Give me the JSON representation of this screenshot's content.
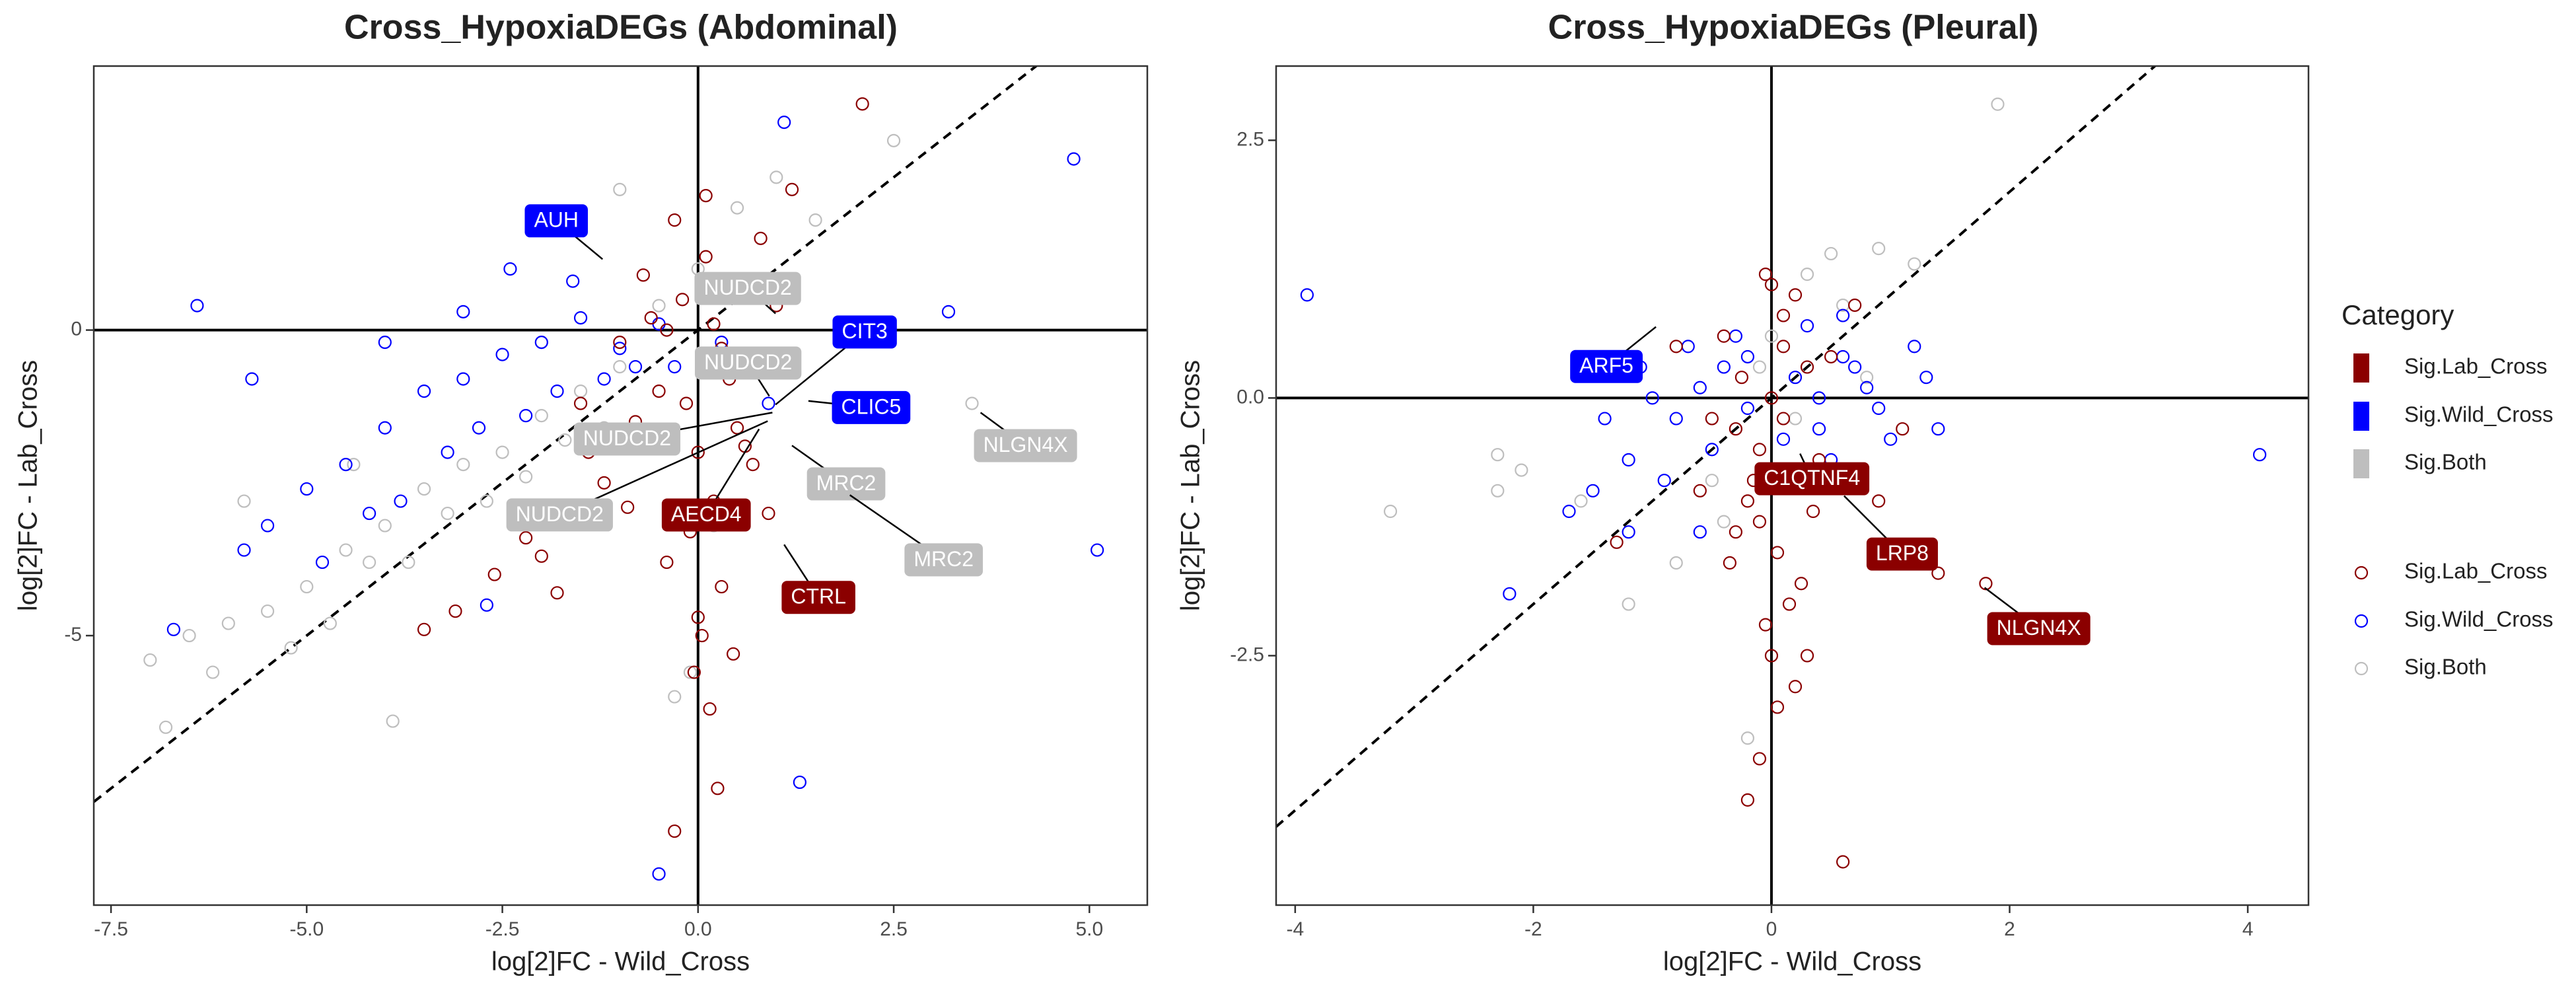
{
  "chart_data": [
    {
      "type": "scatter",
      "title": "Cross_HypoxiaDEGs (Abdominal)",
      "x_label": "log[2]FC - Wild_Cross",
      "y_label": "log[2]FC - Lab_Cross",
      "legend_title": "Category",
      "xlim": [
        -7.72,
        5.74
      ],
      "ylim": [
        -9.41,
        4.32
      ],
      "xticks": [
        -7.5,
        {
          "value": -5,
          "label": "-5.0"
        },
        -2.5,
        {
          "value": 0,
          "label": "0.0"
        },
        2.5,
        {
          "value": 5,
          "label": "5.0"
        }
      ],
      "yticks": [
        -5,
        0
      ],
      "hline": 0,
      "vline": 0,
      "abline": {
        "slope": 1,
        "intercept": 0
      },
      "series": [
        {
          "name": "Sig.Lab_Cross",
          "color": "#8b0000",
          "x": [
            -0.2,
            0.1,
            0.3,
            -0.5,
            0.6,
            -0.8,
            0.0,
            0.2,
            -0.3,
            0.4,
            -1.0,
            0.8,
            -0.1,
            0.5,
            -0.6,
            0.1,
            -1.2,
            0.3,
            -0.4,
            0.7,
            -2.2,
            -1.8,
            -2.6,
            -3.1,
            -1.5,
            -0.9,
            0.05,
            -0.05,
            0.15,
            0.0,
            0.25,
            -0.3,
            2.1,
            1.2,
            -0.4,
            0.9,
            -1.4,
            -0.7,
            0.45,
            -0.15,
            1.0,
            -2.0,
            -3.5,
            0.6,
            0.2
          ],
          "values": [
            0.5,
            1.2,
            -0.3,
            -1.0,
            0.8,
            -1.5,
            -2.0,
            -2.8,
            1.8,
            -0.8,
            -0.2,
            1.5,
            -3.3,
            -1.6,
            0.2,
            2.2,
            -2.5,
            -4.2,
            -3.8,
            -2.2,
            -3.4,
            -4.3,
            -4.0,
            -4.6,
            -1.2,
            -2.9,
            -5.0,
            -5.6,
            -6.2,
            -4.7,
            -7.5,
            -8.2,
            3.7,
            2.3,
            0.0,
            -3.0,
            -2.0,
            0.9,
            -5.3,
            -1.2,
            0.4,
            -3.7,
            -4.9,
            -1.9,
            0.1
          ]
        },
        {
          "name": "Sig.Wild_Cross",
          "color": "#0000ff",
          "x": [
            -5.5,
            -5.0,
            -4.5,
            -4.0,
            -3.5,
            -3.0,
            -2.5,
            -2.0,
            -1.5,
            -1.0,
            -0.5,
            -4.8,
            -4.2,
            -3.8,
            -3.2,
            -2.8,
            -2.2,
            -1.8,
            -1.2,
            -0.8,
            -6.4,
            -5.7,
            1.1,
            4.8,
            5.1,
            -0.5,
            1.3,
            3.2,
            -5.8,
            -3.0,
            -2.4,
            -1.6,
            -0.3,
            0.3,
            0.6,
            -4.0,
            -1.0,
            -2.7,
            -6.7,
            0.9
          ],
          "values": [
            -3.2,
            -2.6,
            -2.2,
            -1.6,
            -1.0,
            -0.8,
            -0.4,
            -0.2,
            0.2,
            -0.3,
            0.1,
            -3.8,
            -3.0,
            -2.8,
            -2.0,
            -1.6,
            -1.4,
            -1.0,
            -0.8,
            -0.6,
            0.4,
            -0.8,
            3.4,
            2.8,
            -3.6,
            -8.9,
            -7.4,
            0.3,
            -3.6,
            0.3,
            1.0,
            0.8,
            -0.6,
            -0.2,
            0.6,
            -0.2,
            -1.8,
            -4.5,
            -4.9,
            -1.2
          ]
        },
        {
          "name": "Sig.Both",
          "color": "#bebebe",
          "x": [
            -7.0,
            -6.5,
            -6.0,
            -5.5,
            -5.0,
            -4.5,
            -4.0,
            -3.5,
            -3.0,
            -2.5,
            -2.0,
            -1.5,
            -1.0,
            -0.5,
            0.0,
            0.5,
            1.0,
            1.5,
            2.5,
            -6.8,
            -6.2,
            -5.2,
            -4.7,
            -4.2,
            -3.7,
            -3.2,
            -2.7,
            -2.2,
            -1.7,
            -1.2,
            -3.9,
            -0.1,
            -0.3,
            0.2,
            -5.8,
            -2.0,
            3.5,
            0.4,
            -4.4,
            -1.0
          ],
          "values": [
            -5.4,
            -5.0,
            -4.8,
            -4.6,
            -4.2,
            -3.6,
            -3.2,
            -2.6,
            -2.2,
            -2.0,
            -1.4,
            -1.0,
            -0.6,
            0.4,
            1.0,
            2.0,
            2.5,
            1.8,
            3.1,
            -6.5,
            -5.6,
            -5.2,
            -4.8,
            -3.8,
            -3.8,
            -3.0,
            -2.8,
            -2.4,
            -1.8,
            -1.6,
            -6.4,
            -5.6,
            -6.0,
            -3.2,
            -2.8,
            -0.2,
            -1.2,
            0.6,
            -2.2,
            2.3
          ]
        }
      ],
      "annotations": [
        {
          "text": "AUH",
          "x": -1.22,
          "y": 1.16,
          "color": "#0000ff"
        },
        {
          "text": "NUDCD2",
          "x": 0.99,
          "y": 0.27,
          "color": "#bebebe"
        },
        {
          "text": "NUDCD2",
          "x": 0.91,
          "y": -1.08,
          "color": "#bebebe"
        },
        {
          "text": "CIT3",
          "x": 0.99,
          "y": -1.22,
          "color": "#0000ff"
        },
        {
          "text": "CLIC5",
          "x": 1.41,
          "y": -1.16,
          "color": "#0000ff"
        },
        {
          "text": "NUDCD2",
          "x": 0.95,
          "y": -1.35,
          "color": "#bebebe"
        },
        {
          "text": "NLGN4X",
          "x": 3.61,
          "y": -1.35,
          "color": "#bebebe"
        },
        {
          "text": "MRC2",
          "x": 1.2,
          "y": -1.89,
          "color": "#bebebe"
        },
        {
          "text": "MRC2",
          "x": 1.94,
          "y": -2.7,
          "color": "#bebebe"
        },
        {
          "text": "NUDCD2",
          "x": 0.89,
          "y": -1.49,
          "color": "#bebebe"
        },
        {
          "text": "AECD4",
          "x": 0.78,
          "y": -1.62,
          "color": "#8b0000"
        },
        {
          "text": "CTRL",
          "x": 1.1,
          "y": -3.51,
          "color": "#8b0000"
        }
      ]
    },
    {
      "type": "scatter",
      "title": "Cross_HypoxiaDEGs (Pleural)",
      "x_label": "log[2]FC - Wild_Cross",
      "y_label": "log[2]FC - Lab_Cross",
      "xlim": [
        -4.16,
        4.51
      ],
      "ylim": [
        -4.92,
        3.22
      ],
      "xticks": [
        -4,
        -2,
        0,
        2,
        4
      ],
      "yticks": [
        -2.5,
        {
          "value": 0,
          "label": "0.0"
        },
        2.5
      ],
      "hline": 0,
      "vline": 0,
      "abline": {
        "slope": 1,
        "intercept": 0
      },
      "series": [
        {
          "name": "Sig.Lab_Cross",
          "color": "#8b0000",
          "x": [
            0.0,
            0.1,
            -0.1,
            0.2,
            -0.2,
            0.3,
            -0.3,
            0.05,
            -0.05,
            0.15,
            -0.15,
            0.4,
            -0.4,
            0.0,
            0.1,
            -0.1,
            0.25,
            -0.25,
            0.5,
            -0.5,
            -0.2,
            0.6,
            -0.1,
            0.2,
            0.9,
            1.4,
            -1.3,
            1.8,
            0.35,
            -0.35,
            0.0,
            0.1,
            -0.6,
            0.7,
            -0.05,
            0.05,
            0.3,
            -0.3,
            1.1,
            -0.8
          ],
          "values": [
            0.0,
            0.5,
            -0.5,
            1.0,
            -1.0,
            0.3,
            -0.3,
            -1.5,
            1.2,
            -2.0,
            -0.8,
            -0.6,
            0.6,
            -2.5,
            0.8,
            -1.2,
            -1.8,
            0.2,
            0.4,
            -0.2,
            -3.9,
            -4.5,
            -3.5,
            -2.8,
            -1.0,
            -1.7,
            -1.4,
            -1.8,
            -1.1,
            -1.6,
            1.1,
            -0.2,
            -0.9,
            0.9,
            -2.2,
            -3.0,
            -2.5,
            -1.3,
            -0.3,
            0.5
          ]
        },
        {
          "name": "Sig.Wild_Cross",
          "color": "#0000ff",
          "x": [
            -1.0,
            -0.8,
            -0.6,
            -0.4,
            -0.2,
            0.2,
            0.4,
            0.6,
            0.8,
            1.0,
            1.2,
            -1.2,
            -1.4,
            0.3,
            -0.5,
            0.5,
            -0.7,
            0.7,
            -3.9,
            4.1,
            -2.2,
            -1.2,
            1.3,
            -1.5,
            -0.9,
            0.9,
            -0.3,
            0.1,
            -1.1,
            0.6,
            -1.7,
            -0.6,
            1.4,
            -0.2,
            0.4
          ],
          "values": [
            0.0,
            -0.2,
            0.1,
            0.3,
            -0.1,
            0.2,
            -0.3,
            0.4,
            0.1,
            -0.4,
            0.5,
            -0.6,
            -0.2,
            0.7,
            -0.5,
            -0.6,
            0.5,
            0.3,
            1.0,
            -0.55,
            -1.9,
            -1.3,
            0.2,
            -0.9,
            -0.8,
            -0.1,
            0.6,
            -0.4,
            0.3,
            0.8,
            -1.1,
            -1.3,
            -0.3,
            0.4,
            0.0
          ]
        },
        {
          "name": "Sig.Both",
          "color": "#bebebe",
          "x": [
            1.9,
            -3.2,
            -2.3,
            -2.3,
            -1.2,
            0.5,
            0.9,
            -0.2,
            -0.1,
            0.2,
            -0.5,
            0.6,
            -0.8,
            0.3,
            -2.1,
            1.2,
            -0.4,
            0.0,
            -1.6,
            0.8
          ],
          "values": [
            2.85,
            -1.1,
            -0.55,
            -0.9,
            -2.0,
            1.4,
            1.45,
            -3.3,
            0.3,
            -0.2,
            -0.8,
            0.9,
            -1.6,
            1.2,
            -0.7,
            1.3,
            -1.2,
            0.6,
            -1.0,
            0.2
          ]
        }
      ],
      "annotations": [
        {
          "text": "ARF5",
          "x": -0.97,
          "y": 0.69,
          "color": "#0000ff"
        },
        {
          "text": "C1QTNF4",
          "x": 0.24,
          "y": -0.54,
          "color": "#8b0000"
        },
        {
          "text": "LRP8",
          "x": 0.61,
          "y": -0.95,
          "color": "#8b0000"
        },
        {
          "text": "NLGN4X",
          "x": 1.79,
          "y": -1.84,
          "color": "#8b0000"
        }
      ]
    }
  ]
}
